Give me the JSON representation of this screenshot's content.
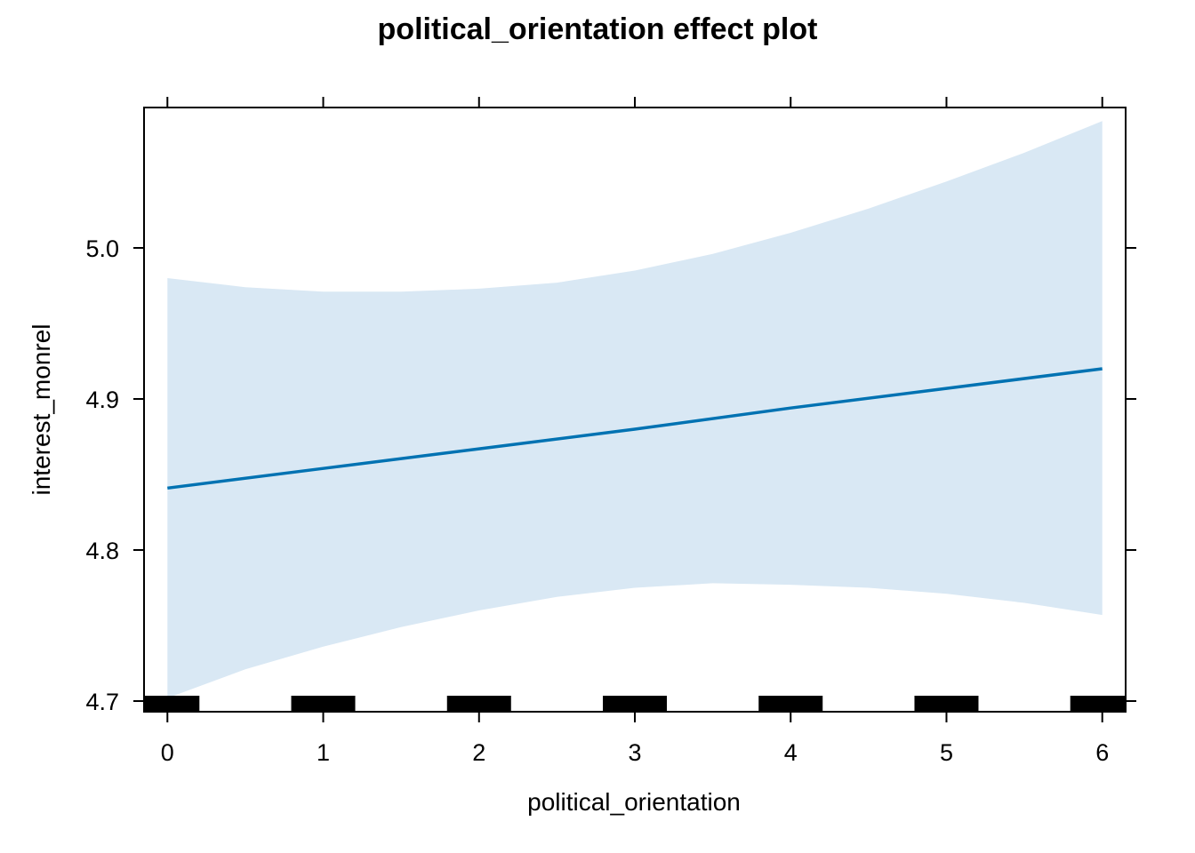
{
  "chart_data": {
    "type": "line",
    "title": "political_orientation effect plot",
    "xlabel": "political_orientation",
    "ylabel": "interest_monrel",
    "xlim": [
      -0.15,
      6.15
    ],
    "ylim": [
      4.7,
      5.1
    ],
    "x_ticks": [
      0,
      1,
      2,
      3,
      4,
      5,
      6
    ],
    "x_tick_labels": [
      "0",
      "1",
      "2",
      "3",
      "4",
      "5",
      "6"
    ],
    "y_ticks": [
      4.7,
      4.8,
      4.9,
      5.0
    ],
    "y_tick_labels": [
      "4.7",
      "4.8",
      "4.9",
      "5.0"
    ],
    "grid": false,
    "colors": {
      "line": "#0072b2",
      "band": "#d9e8f4",
      "rug": "#000000",
      "frame": "#000000"
    },
    "series": [
      {
        "x": [
          0,
          1,
          2,
          3,
          4,
          5,
          6
        ],
        "values": [
          4.841,
          4.854,
          4.867,
          4.88,
          4.894,
          4.907,
          4.92
        ]
      }
    ],
    "confidence_band": {
      "x": [
        0,
        0.5,
        1,
        1.5,
        2,
        2.5,
        3,
        3.5,
        4,
        4.5,
        5,
        5.5,
        6
      ],
      "lower": [
        4.702,
        4.721,
        4.736,
        4.749,
        4.76,
        4.769,
        4.775,
        4.778,
        4.777,
        4.775,
        4.771,
        4.765,
        4.757
      ],
      "upper": [
        4.98,
        4.974,
        4.971,
        4.971,
        4.973,
        4.977,
        4.985,
        4.996,
        5.01,
        5.026,
        5.044,
        5.063,
        5.084
      ]
    },
    "rug_x": [
      0,
      1,
      2,
      3,
      4,
      5,
      6
    ]
  }
}
